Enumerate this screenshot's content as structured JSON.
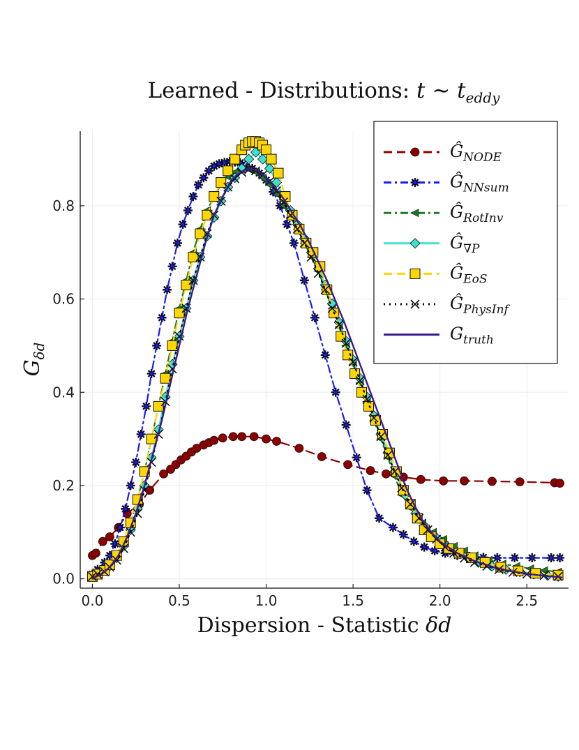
{
  "chart_data": {
    "type": "line",
    "title": "Learned - Distributions: t ∼ t_eddy",
    "title_parts": {
      "prefix": "Learned - Distributions: ",
      "math": "t ∼ t",
      "sub": "eddy"
    },
    "xlabel": "Dispersion - Statistic δd",
    "xlabel_parts": {
      "text": "Dispersion - Statistic ",
      "math": "δd"
    },
    "ylabel": "G_δd",
    "ylabel_parts": {
      "base": "G",
      "sub": "δd"
    },
    "xlim": [
      -0.07,
      2.74
    ],
    "ylim": [
      -0.02,
      0.96
    ],
    "xticks": [
      0.0,
      0.5,
      1.0,
      1.5,
      2.0,
      2.5
    ],
    "xtick_labels": [
      "0.0",
      "0.5",
      "1.0",
      "1.5",
      "2.0",
      "2.5"
    ],
    "yticks": [
      0.0,
      0.2,
      0.4,
      0.6,
      0.8
    ],
    "ytick_labels": [
      "0.0",
      "0.2",
      "0.4",
      "0.6",
      "0.8"
    ],
    "grid": true,
    "legend_position": "top-right",
    "series": [
      {
        "name": "Ĝ_NODE",
        "label_base": "Ĝ",
        "label_sub": "NODE",
        "color": "#8b0000",
        "line_style": "dash",
        "marker": "circle",
        "x": [
          0.0,
          0.02,
          0.06,
          0.1,
          0.15,
          0.2,
          0.27,
          0.33,
          0.41,
          0.45,
          0.48,
          0.51,
          0.54,
          0.57,
          0.6,
          0.64,
          0.67,
          0.7,
          0.75,
          0.81,
          0.86,
          0.93,
          1.0,
          1.06,
          1.19,
          1.32,
          1.47,
          1.6,
          1.69,
          1.79,
          1.89,
          2.02,
          2.14,
          2.3,
          2.46,
          2.66,
          2.69
        ],
        "y": [
          0.05,
          0.055,
          0.08,
          0.09,
          0.11,
          0.14,
          0.16,
          0.19,
          0.225,
          0.235,
          0.245,
          0.255,
          0.263,
          0.272,
          0.28,
          0.287,
          0.292,
          0.297,
          0.302,
          0.305,
          0.305,
          0.305,
          0.3,
          0.295,
          0.28,
          0.262,
          0.245,
          0.232,
          0.225,
          0.218,
          0.213,
          0.21,
          0.21,
          0.209,
          0.208,
          0.206,
          0.205
        ]
      },
      {
        "name": "Ĝ_NNsum",
        "label_base": "Ĝ",
        "label_sub": "NNsum",
        "color": "#1a1aff",
        "line_style": "dashdot",
        "marker": "star",
        "x": [
          0.0,
          0.03,
          0.07,
          0.1,
          0.13,
          0.16,
          0.19,
          0.22,
          0.25,
          0.28,
          0.31,
          0.34,
          0.37,
          0.4,
          0.43,
          0.46,
          0.49,
          0.52,
          0.55,
          0.58,
          0.61,
          0.64,
          0.67,
          0.7,
          0.73,
          0.76,
          0.79,
          0.82,
          0.85,
          0.88,
          0.92,
          0.96,
          1.0,
          1.04,
          1.08,
          1.12,
          1.16,
          1.22,
          1.28,
          1.34,
          1.4,
          1.46,
          1.52,
          1.58,
          1.65,
          1.73,
          1.79,
          1.85,
          1.91,
          1.97,
          2.03,
          2.1,
          2.17,
          2.25,
          2.33,
          2.43,
          2.53,
          2.64,
          2.69
        ],
        "y": [
          0.01,
          0.02,
          0.035,
          0.05,
          0.075,
          0.11,
          0.15,
          0.2,
          0.25,
          0.31,
          0.37,
          0.44,
          0.5,
          0.56,
          0.62,
          0.67,
          0.72,
          0.76,
          0.79,
          0.82,
          0.845,
          0.86,
          0.875,
          0.885,
          0.89,
          0.893,
          0.895,
          0.894,
          0.892,
          0.888,
          0.88,
          0.87,
          0.855,
          0.83,
          0.8,
          0.76,
          0.72,
          0.64,
          0.56,
          0.48,
          0.4,
          0.33,
          0.26,
          0.19,
          0.13,
          0.11,
          0.095,
          0.08,
          0.068,
          0.06,
          0.055,
          0.05,
          0.048,
          0.046,
          0.045,
          0.045,
          0.045,
          0.045,
          0.045
        ]
      },
      {
        "name": "Ĝ_RotInv",
        "label_base": "Ĝ",
        "label_sub": "RotInv",
        "color": "#1e7a1e",
        "line_style": "dashdot",
        "marker": "triangle-left",
        "x": [
          0.0,
          0.03,
          0.07,
          0.1,
          0.14,
          0.18,
          0.22,
          0.26,
          0.3,
          0.34,
          0.38,
          0.42,
          0.46,
          0.5,
          0.54,
          0.58,
          0.62,
          0.66,
          0.7,
          0.74,
          0.78,
          0.82,
          0.86,
          0.9,
          0.94,
          0.98,
          1.02,
          1.06,
          1.1,
          1.14,
          1.18,
          1.22,
          1.26,
          1.3,
          1.34,
          1.38,
          1.42,
          1.46,
          1.5,
          1.54,
          1.58,
          1.62,
          1.66,
          1.7,
          1.74,
          1.78,
          1.84,
          1.9,
          1.96,
          2.02,
          2.08,
          2.14,
          2.2,
          2.28,
          2.36,
          2.44,
          2.52,
          2.6,
          2.68
        ],
        "y": [
          0.005,
          0.01,
          0.02,
          0.03,
          0.05,
          0.08,
          0.12,
          0.17,
          0.23,
          0.3,
          0.37,
          0.44,
          0.51,
          0.58,
          0.64,
          0.7,
          0.75,
          0.79,
          0.82,
          0.845,
          0.862,
          0.872,
          0.878,
          0.878,
          0.872,
          0.86,
          0.845,
          0.825,
          0.8,
          0.775,
          0.75,
          0.72,
          0.69,
          0.66,
          0.62,
          0.58,
          0.54,
          0.5,
          0.46,
          0.42,
          0.38,
          0.34,
          0.3,
          0.26,
          0.22,
          0.18,
          0.15,
          0.12,
          0.1,
          0.085,
          0.07,
          0.06,
          0.05,
          0.04,
          0.032,
          0.027,
          0.022,
          0.018,
          0.015
        ]
      },
      {
        "name": "Ĝ_∇P",
        "label_base": "Ĝ",
        "label_sub": "∇P",
        "color": "#40e0d0",
        "line_style": "solid",
        "marker": "diamond",
        "x": [
          0.0,
          0.03,
          0.07,
          0.1,
          0.14,
          0.18,
          0.22,
          0.26,
          0.3,
          0.34,
          0.38,
          0.42,
          0.46,
          0.5,
          0.54,
          0.58,
          0.62,
          0.66,
          0.7,
          0.74,
          0.78,
          0.82,
          0.86,
          0.9,
          0.94,
          0.98,
          1.02,
          1.06,
          1.1,
          1.14,
          1.18,
          1.22,
          1.26,
          1.3,
          1.34,
          1.38,
          1.42,
          1.46,
          1.5,
          1.54,
          1.58,
          1.62,
          1.66,
          1.7,
          1.74,
          1.8,
          1.86,
          1.92,
          1.98,
          2.04,
          2.1,
          2.16,
          2.22,
          2.3,
          2.38,
          2.46,
          2.54,
          2.62,
          2.68
        ],
        "y": [
          0.005,
          0.01,
          0.018,
          0.028,
          0.045,
          0.07,
          0.105,
          0.15,
          0.2,
          0.26,
          0.32,
          0.39,
          0.46,
          0.52,
          0.58,
          0.64,
          0.69,
          0.735,
          0.775,
          0.81,
          0.84,
          0.86,
          0.88,
          0.9,
          0.915,
          0.9,
          0.88,
          0.85,
          0.82,
          0.79,
          0.76,
          0.73,
          0.7,
          0.665,
          0.63,
          0.59,
          0.55,
          0.51,
          0.47,
          0.43,
          0.39,
          0.35,
          0.31,
          0.27,
          0.23,
          0.18,
          0.14,
          0.11,
          0.088,
          0.07,
          0.055,
          0.045,
          0.035,
          0.027,
          0.02,
          0.015,
          0.01,
          0.007,
          0.005
        ]
      },
      {
        "name": "Ĝ_EoS",
        "label_base": "Ĝ",
        "label_sub": "EoS",
        "color": "#ffd700",
        "line_style": "dash",
        "marker": "square",
        "x": [
          0.0,
          0.03,
          0.07,
          0.1,
          0.14,
          0.18,
          0.22,
          0.26,
          0.3,
          0.34,
          0.38,
          0.42,
          0.46,
          0.5,
          0.54,
          0.58,
          0.62,
          0.66,
          0.7,
          0.74,
          0.78,
          0.82,
          0.86,
          0.88,
          0.9,
          0.92,
          0.94,
          0.96,
          0.98,
          1.0,
          1.03,
          1.07,
          1.11,
          1.15,
          1.19,
          1.23,
          1.27,
          1.31,
          1.35,
          1.39,
          1.43,
          1.47,
          1.51,
          1.55,
          1.59,
          1.63,
          1.67,
          1.71,
          1.75,
          1.79,
          1.83,
          1.87,
          1.91,
          1.95,
          2.0,
          2.05,
          2.11,
          2.18,
          2.26,
          2.35,
          2.45,
          2.55,
          2.68
        ],
        "y": [
          0.005,
          0.01,
          0.018,
          0.03,
          0.05,
          0.08,
          0.12,
          0.17,
          0.23,
          0.3,
          0.37,
          0.43,
          0.5,
          0.57,
          0.63,
          0.69,
          0.74,
          0.78,
          0.82,
          0.85,
          0.875,
          0.9,
          0.92,
          0.93,
          0.935,
          0.938,
          0.938,
          0.935,
          0.93,
          0.92,
          0.9,
          0.87,
          0.82,
          0.78,
          0.75,
          0.72,
          0.7,
          0.67,
          0.62,
          0.57,
          0.52,
          0.48,
          0.44,
          0.4,
          0.37,
          0.34,
          0.31,
          0.27,
          0.23,
          0.19,
          0.16,
          0.13,
          0.105,
          0.09,
          0.075,
          0.065,
          0.055,
          0.045,
          0.035,
          0.025,
          0.017,
          0.012,
          0.008
        ]
      },
      {
        "name": "Ĝ_PhysInf",
        "label_base": "Ĝ",
        "label_sub": "PhysInf",
        "color": "#000000",
        "line_style": "dot",
        "marker": "x",
        "x": [
          0.0,
          0.03,
          0.07,
          0.1,
          0.14,
          0.18,
          0.22,
          0.26,
          0.3,
          0.34,
          0.38,
          0.42,
          0.46,
          0.5,
          0.54,
          0.58,
          0.62,
          0.66,
          0.7,
          0.74,
          0.78,
          0.82,
          0.86,
          0.9,
          0.94,
          0.98,
          1.02,
          1.06,
          1.1,
          1.14,
          1.18,
          1.22,
          1.26,
          1.3,
          1.34,
          1.38,
          1.42,
          1.46,
          1.5,
          1.54,
          1.58,
          1.62,
          1.66,
          1.7,
          1.74,
          1.78,
          1.83,
          1.88,
          1.93,
          1.98,
          2.03,
          2.08,
          2.14,
          2.2,
          2.27,
          2.34,
          2.42,
          2.5,
          2.6,
          2.68
        ],
        "y": [
          0.005,
          0.01,
          0.015,
          0.025,
          0.04,
          0.065,
          0.1,
          0.14,
          0.19,
          0.25,
          0.31,
          0.38,
          0.45,
          0.52,
          0.58,
          0.64,
          0.69,
          0.74,
          0.78,
          0.81,
          0.84,
          0.858,
          0.872,
          0.878,
          0.875,
          0.866,
          0.852,
          0.832,
          0.808,
          0.78,
          0.75,
          0.72,
          0.69,
          0.655,
          0.62,
          0.58,
          0.545,
          0.505,
          0.465,
          0.425,
          0.385,
          0.345,
          0.305,
          0.265,
          0.23,
          0.195,
          0.16,
          0.13,
          0.105,
          0.085,
          0.068,
          0.055,
          0.044,
          0.035,
          0.027,
          0.02,
          0.014,
          0.01,
          0.007,
          0.005
        ]
      },
      {
        "name": "G_truth",
        "label_base": "G",
        "label_sub": "truth",
        "color": "#3a1a8a",
        "line_style": "solid",
        "marker": "none",
        "x": [
          0.0,
          0.05,
          0.1,
          0.15,
          0.2,
          0.25,
          0.3,
          0.35,
          0.4,
          0.45,
          0.5,
          0.55,
          0.6,
          0.65,
          0.7,
          0.75,
          0.8,
          0.85,
          0.9,
          0.95,
          1.0,
          1.05,
          1.1,
          1.15,
          1.2,
          1.25,
          1.3,
          1.35,
          1.4,
          1.45,
          1.5,
          1.55,
          1.6,
          1.65,
          1.7,
          1.75,
          1.8,
          1.85,
          1.9,
          1.95,
          2.0,
          2.1,
          2.2,
          2.3,
          2.4,
          2.5,
          2.6,
          2.7
        ],
        "y": [
          0.0,
          0.01,
          0.025,
          0.05,
          0.09,
          0.14,
          0.2,
          0.27,
          0.34,
          0.42,
          0.5,
          0.58,
          0.65,
          0.72,
          0.78,
          0.82,
          0.855,
          0.872,
          0.88,
          0.875,
          0.86,
          0.84,
          0.815,
          0.785,
          0.755,
          0.72,
          0.68,
          0.64,
          0.595,
          0.55,
          0.5,
          0.45,
          0.4,
          0.35,
          0.3,
          0.25,
          0.2,
          0.16,
          0.125,
          0.1,
          0.08,
          0.055,
          0.038,
          0.026,
          0.017,
          0.011,
          0.006,
          0.003
        ]
      }
    ]
  }
}
